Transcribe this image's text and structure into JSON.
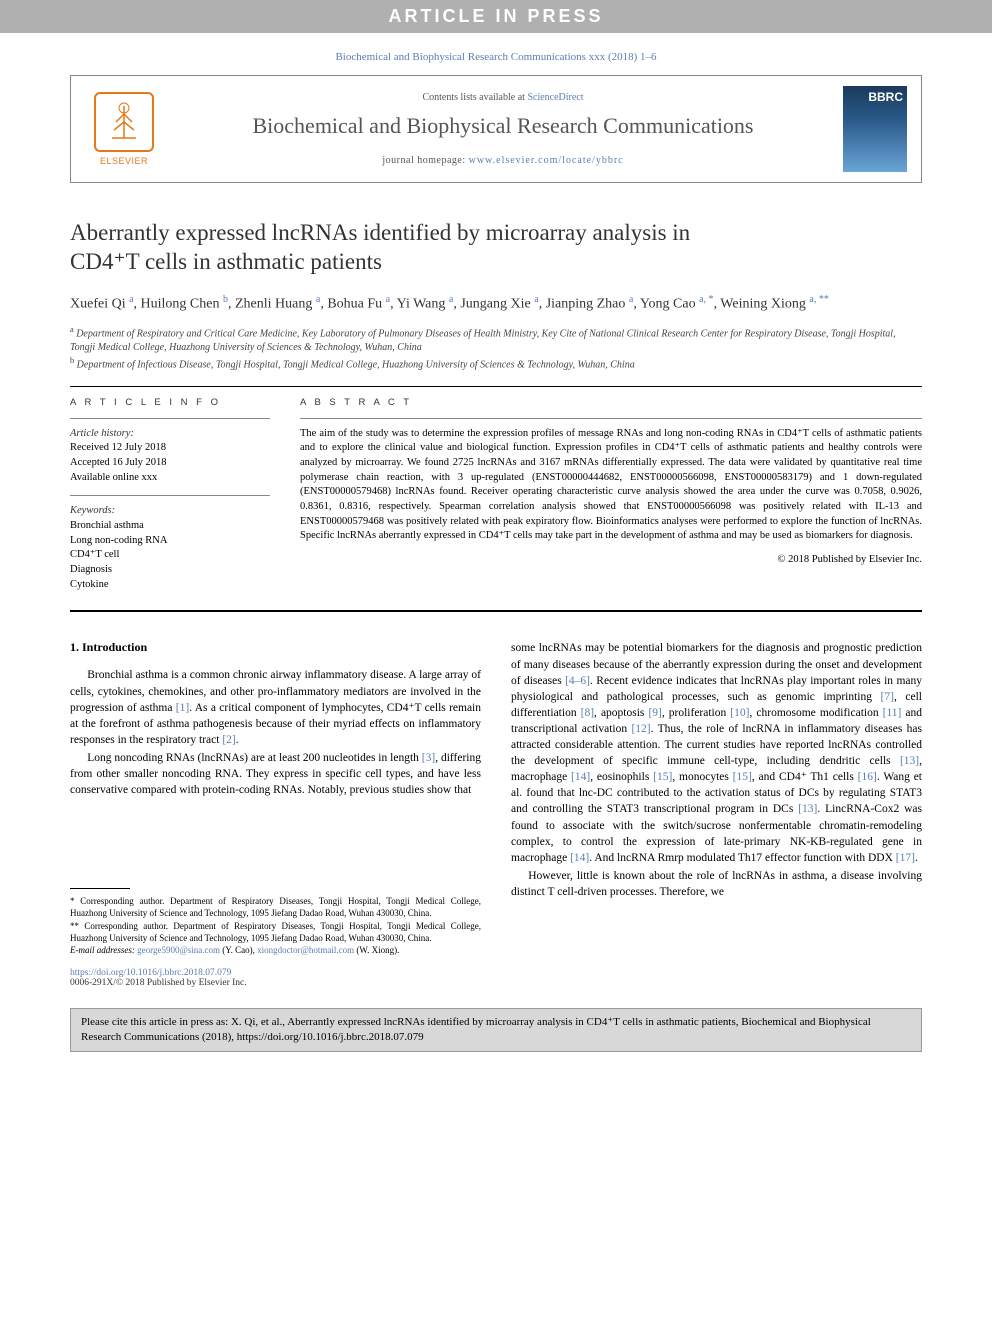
{
  "banner": {
    "text": "ARTICLE IN PRESS"
  },
  "journal_ref": "Biochemical and Biophysical Research Communications xxx (2018) 1–6",
  "header": {
    "contents_prefix": "Contents lists available at ",
    "sciencedirect": "ScienceDirect",
    "journal_name": "Biochemical and Biophysical Research Communications",
    "homepage_prefix": "journal homepage: ",
    "homepage_url": "www.elsevier.com/locate/ybbrc",
    "elsevier_text": "ELSEVIER",
    "cover_abbrev": "BBRC",
    "colors": {
      "elsevier_orange": "#e67817",
      "link_blue": "#5b7db1",
      "banner_bg": "#b0b0b0",
      "cover_top": "#1a3a5a",
      "cover_bottom": "#6aa5d8"
    }
  },
  "article": {
    "title_line1": "Aberrantly expressed lncRNAs identified by microarray analysis in",
    "title_line2": "CD4⁺T cells in asthmatic patients",
    "authors_html": "Xuefei Qi <sup>a</sup>, Huilong Chen <sup>b</sup>, Zhenli Huang <sup>a</sup>, Bohua Fu <sup>a</sup>, Yi Wang <sup>a</sup>, Jungang Xie <sup>a</sup>, Jianping Zhao <sup>a</sup>, Yong Cao <sup>a, *</sup>, Weining Xiong <sup>a, **</sup>",
    "affiliations": [
      {
        "sup": "a",
        "text": "Department of Respiratory and Critical Care Medicine, Key Laboratory of Pulmonary Diseases of Health Ministry, Key Cite of National Clinical Research Center for Respiratory Disease, Tongji Hospital, Tongji Medical College, Huazhong University of Sciences & Technology, Wuhan, China"
      },
      {
        "sup": "b",
        "text": "Department of Infectious Disease, Tongji Hospital, Tongji Medical College, Huazhong University of Sciences & Technology, Wuhan, China"
      }
    ]
  },
  "article_info": {
    "heading": "A R T I C L E   I N F O",
    "history_label": "Article history:",
    "received": "Received 12 July 2018",
    "accepted": "Accepted 16 July 2018",
    "online": "Available online xxx",
    "keywords_label": "Keywords:",
    "keywords": [
      "Bronchial asthma",
      "Long non-coding RNA",
      "CD4⁺T cell",
      "Diagnosis",
      "Cytokine"
    ]
  },
  "abstract": {
    "heading": "A B S T R A C T",
    "text": "The aim of the study was to determine the expression profiles of message RNAs and long non-coding RNAs in CD4⁺T cells of asthmatic patients and to explore the clinical value and biological function. Expression profiles in CD4⁺T cells of asthmatic patients and healthy controls were analyzed by microarray. We found 2725 lncRNAs and 3167 mRNAs differentially expressed. The data were validated by quantitative real time polymerase chain reaction, with 3 up-regulated (ENST00000444682, ENST00000566098, ENST00000583179) and 1 down-regulated (ENST00000579468) lncRNAs found. Receiver operating characteristic curve analysis showed the area under the curve was 0.7058, 0.9026, 0.8361, 0.8316, respectively. Spearman correlation analysis showed that ENST00000566098 was positively related with IL-13 and ENST00000579468 was positively related with peak expiratory flow. Bioinformatics analyses were performed to explore the function of lncRNAs. Specific lncRNAs aberrantly expressed in CD4⁺T cells may take part in the development of asthma and may be used as biomarkers for diagnosis.",
    "copyright": "© 2018 Published by Elsevier Inc."
  },
  "body": {
    "section_heading": "1. Introduction",
    "col1_paras": [
      "Bronchial asthma is a common chronic airway inflammatory disease. A large array of cells, cytokines, chemokines, and other pro-inflammatory mediators are involved in the progression of asthma [1]. As a critical component of lymphocytes, CD4⁺T cells remain at the forefront of asthma pathogenesis because of their myriad effects on inflammatory responses in the respiratory tract [2].",
      "Long noncoding RNAs (lncRNAs) are at least 200 nucleotides in length [3], differing from other smaller noncoding RNA. They express in specific cell types, and have less conservative compared with protein-coding RNAs. Notably, previous studies show that"
    ],
    "col2_paras": [
      "some lncRNAs may be potential biomarkers for the diagnosis and prognostic prediction of many diseases because of the aberrantly expression during the onset and development of diseases [4–6]. Recent evidence indicates that lncRNAs play important roles in many physiological and pathological processes, such as genomic imprinting [7], cell differentiation [8], apoptosis [9], proliferation [10], chromosome modification [11] and transcriptional activation [12]. Thus, the role of lncRNA in inflammatory diseases has attracted considerable attention. The current studies have reported lncRNAs controlled the development of specific immune cell-type, including dendritic cells [13], macrophage [14], eosinophils [15], monocytes [15], and CD4⁺ Th1 cells [16]. Wang et al. found that lnc-DC contributed to the activation status of DCs by regulating STAT3 and controlling the STAT3 transcriptional program in DCs [13]. LincRNA-Cox2 was found to associate with the switch/sucrose nonfermentable chromatin-remodeling complex, to control the expression of late-primary NK-KB-regulated gene in macrophage [14]. And lncRNA Rmrp modulated Th17 effector function with DDX [17].",
      "However, little is known about the role of lncRNAs in asthma, a disease involving distinct T cell-driven processes. Therefore, we"
    ],
    "ref_links": [
      "[1]",
      "[2]",
      "[3]",
      "[4–6]",
      "[7]",
      "[8]",
      "[9]",
      "[10]",
      "[11]",
      "[12]",
      "[13]",
      "[14]",
      "[15]",
      "[16]",
      "[17]"
    ]
  },
  "footnotes": {
    "corr1": "* Corresponding author. Department of Respiratory Diseases, Tongji Hospital, Tongji Medical College, Huazhong University of Science and Technology, 1095 Jiefang Dadao Road, Wuhan 430030, China.",
    "corr2": "** Corresponding author. Department of Respiratory Diseases, Tongji Hospital, Tongji Medical College, Huazhong University of Science and Technology, 1095 Jiefang Dadao Road, Wuhan 430030, China.",
    "email_label": "E-mail addresses: ",
    "email1": "george5900@sina.com",
    "email1_who": " (Y. Cao), ",
    "email2": "xiongdoctor@hotmail.com",
    "email2_who": " (W. Xiong)."
  },
  "doi": {
    "url": "https://doi.org/10.1016/j.bbrc.2018.07.079",
    "issn": "0006-291X/© 2018 Published by Elsevier Inc."
  },
  "cite_box": "Please cite this article in press as: X. Qi, et al., Aberrantly expressed lncRNAs identified by microarray analysis in CD4⁺T cells in asthmatic patients, Biochemical and Biophysical Research Communications (2018), https://doi.org/10.1016/j.bbrc.2018.07.079"
}
